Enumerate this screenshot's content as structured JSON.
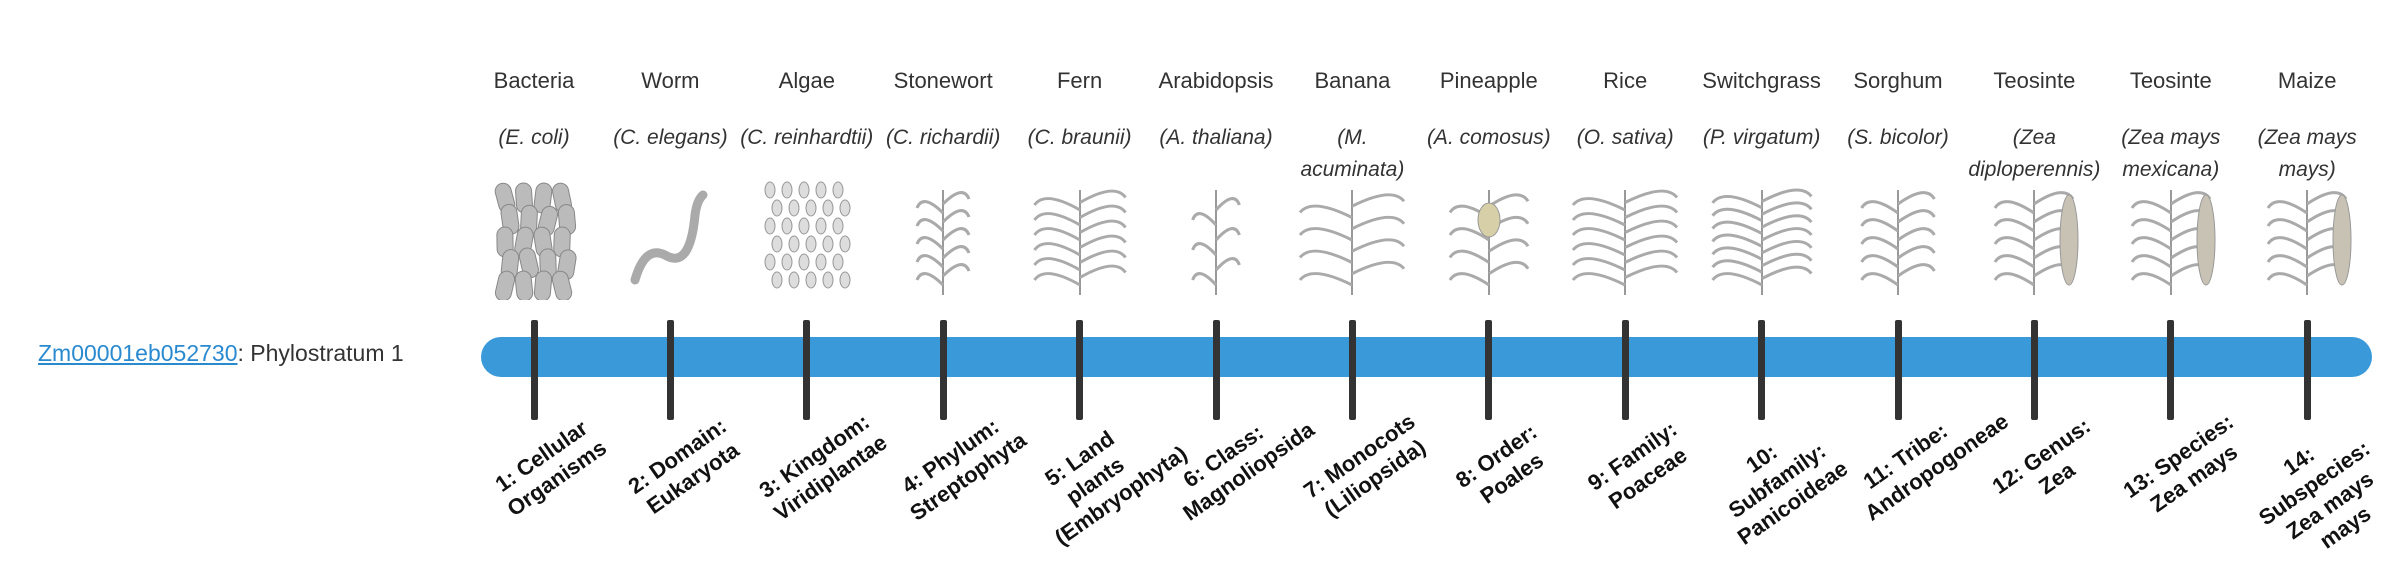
{
  "gene": {
    "id": "Zm00001eb052730",
    "suffix": ": Phylostratum 1"
  },
  "organisms": [
    {
      "name": "Bacteria",
      "species": "(E. coli)",
      "stratum": "1: Cellular Organisms"
    },
    {
      "name": "Worm",
      "species": "(C. elegans)",
      "stratum": "2: Domain: Eukaryota"
    },
    {
      "name": "Algae",
      "species": "(C. reinhardtii)",
      "stratum": "3: Kingdom: Viridiplantae"
    },
    {
      "name": "Stonewort",
      "species": "(C. richardii)",
      "stratum": "4: Phylum: Streptophyta"
    },
    {
      "name": "Fern",
      "species": "(C. braunii)",
      "stratum": "5: Land plants (Embryophyta)"
    },
    {
      "name": "Arabidopsis",
      "species": "(A. thaliana)",
      "stratum": "6: Class: Magnoliopsida"
    },
    {
      "name": "Banana",
      "species": "(M. acuminata)",
      "stratum": "7: Monocots (Liliopsida)"
    },
    {
      "name": "Pineapple",
      "species": "(A. comosus)",
      "stratum": "8: Order: Poales"
    },
    {
      "name": "Rice",
      "species": "(O. sativa)",
      "stratum": "9: Family: Poaceae"
    },
    {
      "name": "Switchgrass",
      "species": "(P. virgatum)",
      "stratum": "10: Subfamily: Panicoideae"
    },
    {
      "name": "Sorghum",
      "species": "(S. bicolor)",
      "stratum": "11: Tribe: Andropogoneae"
    },
    {
      "name": "Teosinte",
      "species": "(Zea diploperennis)",
      "stratum": "12: Genus: Zea"
    },
    {
      "name": "Teosinte",
      "species": "(Zea mays mexicana)",
      "stratum": "13: Species: Zea mays"
    },
    {
      "name": "Maize",
      "species": "(Zea mays mays)",
      "stratum": "14: Subspecies: Zea mays mays"
    }
  ]
}
